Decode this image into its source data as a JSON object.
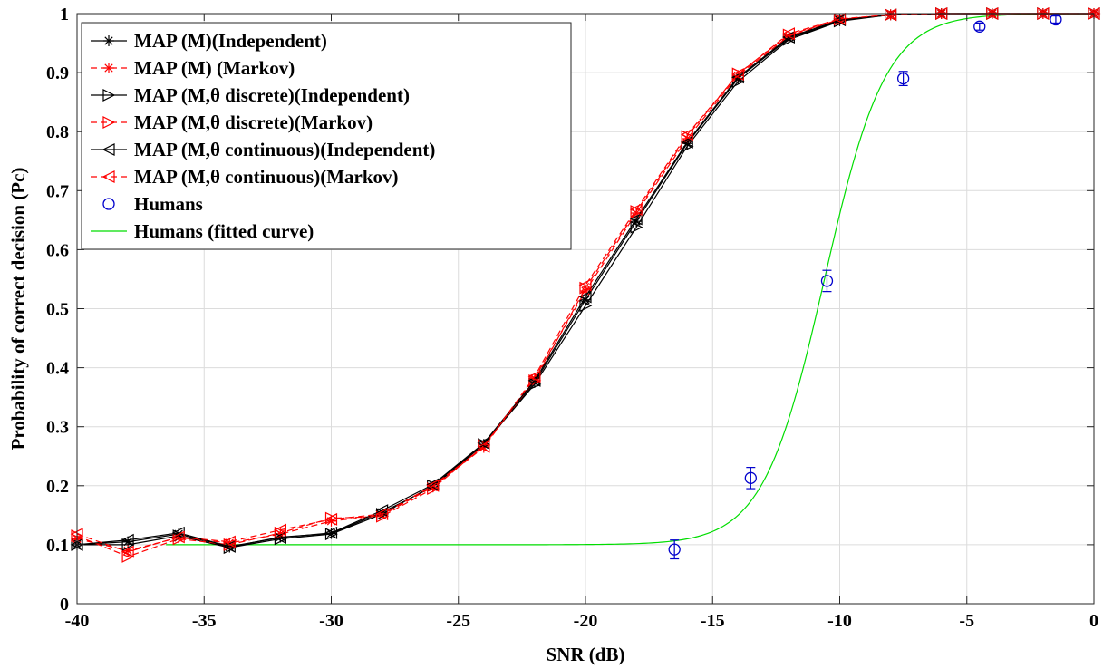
{
  "chart_data": {
    "type": "line",
    "title": "",
    "xlabel": "SNR (dB)",
    "ylabel": "Probability of correct decision (Pc)",
    "xlim": [
      -40,
      0
    ],
    "ylim": [
      0,
      1
    ],
    "grid": true,
    "legend_position": "top-left",
    "x_ticks": [
      -40,
      -35,
      -30,
      -25,
      -20,
      -15,
      -10,
      -5,
      0
    ],
    "x_tick_labels": [
      "-40",
      "-35",
      "-30",
      "-25",
      "-20",
      "-15",
      "-10",
      "-5",
      "0"
    ],
    "y_ticks": [
      0,
      0.1,
      0.2,
      0.3,
      0.4,
      0.5,
      0.6,
      0.7,
      0.8,
      0.9,
      1
    ],
    "y_tick_labels": [
      "0",
      "0.1",
      "0.2",
      "0.3",
      "0.4",
      "0.5",
      "0.6",
      "0.7",
      "0.8",
      "0.9",
      "1"
    ],
    "x": [
      -40,
      -38,
      -36,
      -34,
      -32,
      -30,
      -28,
      -26,
      -24,
      -22,
      -20,
      -18,
      -16,
      -14,
      -12,
      -10,
      -8,
      -6,
      -4,
      -2,
      0
    ],
    "series": [
      {
        "name": "MAP (M)(Independent)",
        "color": "#000000",
        "dash": "solid",
        "marker": "asterisk",
        "values": [
          0.1,
          0.105,
          0.118,
          0.096,
          0.113,
          0.119,
          0.155,
          0.198,
          0.27,
          0.375,
          0.515,
          0.648,
          0.78,
          0.89,
          0.958,
          0.988,
          0.998,
          1.0,
          1.0,
          1.0,
          1.0
        ]
      },
      {
        "name": "MAP (M) (Markov)",
        "color": "#ff0000",
        "dash": "dashed",
        "marker": "asterisk",
        "values": [
          0.11,
          0.09,
          0.112,
          0.103,
          0.118,
          0.14,
          0.15,
          0.198,
          0.265,
          0.382,
          0.53,
          0.662,
          0.788,
          0.895,
          0.962,
          0.99,
          0.998,
          1.0,
          1.0,
          1.0,
          1.0
        ]
      },
      {
        "name": "MAP (M,θ discrete)(Independent)",
        "color": "#000000",
        "dash": "solid",
        "marker": "triangle-right",
        "values": [
          0.1,
          0.1,
          0.115,
          0.095,
          0.11,
          0.118,
          0.152,
          0.2,
          0.27,
          0.372,
          0.505,
          0.638,
          0.775,
          0.885,
          0.956,
          0.987,
          0.998,
          1.0,
          1.0,
          1.0,
          1.0
        ]
      },
      {
        "name": "MAP (M,θ discrete)(Markov)",
        "color": "#ff0000",
        "dash": "dashed",
        "marker": "triangle-right",
        "values": [
          0.115,
          0.08,
          0.11,
          0.1,
          0.12,
          0.145,
          0.148,
          0.195,
          0.268,
          0.378,
          0.535,
          0.665,
          0.792,
          0.898,
          0.964,
          0.99,
          0.998,
          1.0,
          1.0,
          1.0,
          1.0
        ]
      },
      {
        "name": "MAP (M,θ continuous)(Independent)",
        "color": "#000000",
        "dash": "solid",
        "marker": "triangle-left",
        "values": [
          0.1,
          0.108,
          0.12,
          0.097,
          0.112,
          0.12,
          0.158,
          0.202,
          0.272,
          0.378,
          0.52,
          0.652,
          0.782,
          0.892,
          0.96,
          0.989,
          0.998,
          1.0,
          1.0,
          1.0,
          1.0
        ]
      },
      {
        "name": "MAP (M,θ continuous)(Markov)",
        "color": "#ff0000",
        "dash": "dashed",
        "marker": "triangle-left",
        "values": [
          0.118,
          0.088,
          0.113,
          0.105,
          0.125,
          0.143,
          0.152,
          0.2,
          0.266,
          0.385,
          0.54,
          0.668,
          0.795,
          0.897,
          0.966,
          0.991,
          0.998,
          1.0,
          1.0,
          1.0,
          1.0
        ]
      }
    ],
    "humans": {
      "name": "Humans",
      "color": "#0000cc",
      "marker": "circle",
      "x": [
        -16.5,
        -13.5,
        -10.5,
        -7.5,
        -4.5,
        -1.5
      ],
      "y": [
        0.092,
        0.213,
        0.547,
        0.89,
        0.978,
        0.99
      ],
      "error": [
        0.016,
        0.018,
        0.018,
        0.012,
        0.006,
        0.006
      ]
    },
    "fitted_curve": {
      "name": "Humans (fitted curve)",
      "color": "#00dd00",
      "x_range": [
        -36.5,
        0
      ],
      "model": "sigmoid",
      "lower": 0.1,
      "upper": 1.0,
      "midpoint": -10.6,
      "scale": 1.2
    }
  }
}
